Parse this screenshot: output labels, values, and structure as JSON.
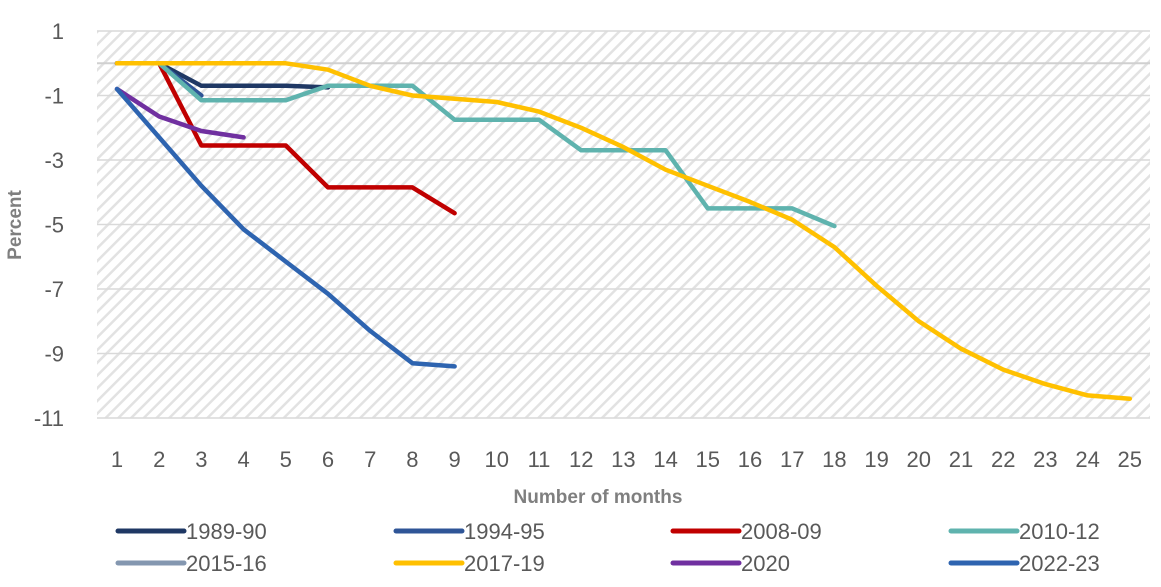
{
  "chart_data": {
    "type": "line",
    "title": "",
    "xlabel": "Number of months",
    "ylabel": "Percent",
    "x": [
      1,
      2,
      3,
      4,
      5,
      6,
      7,
      8,
      9,
      10,
      11,
      12,
      13,
      14,
      15,
      16,
      17,
      18,
      19,
      20,
      21,
      22,
      23,
      24,
      25
    ],
    "y_ticks": [
      1,
      -1,
      -3,
      -5,
      -7,
      -9,
      -11
    ],
    "ylim": [
      -11,
      1
    ],
    "grid": "hatched plot area with horizontal gridlines",
    "legend_position": "bottom",
    "series": [
      {
        "name": "1989-90",
        "color": "#1f3864",
        "x": [
          1,
          2,
          3,
          4,
          5,
          6
        ],
        "values": [
          0,
          0,
          -0.7,
          -0.7,
          -0.7,
          -0.75
        ]
      },
      {
        "name": "1994-95",
        "color": "#2f5597",
        "x": [
          1,
          2,
          3
        ],
        "values": [
          0,
          0,
          -1.0
        ]
      },
      {
        "name": "2008-09",
        "color": "#c00000",
        "x": [
          1,
          2,
          3,
          4,
          5,
          6,
          7,
          8,
          9
        ],
        "values": [
          0,
          0,
          -2.55,
          -2.55,
          -2.55,
          -3.85,
          -3.85,
          -3.85,
          -4.65
        ]
      },
      {
        "name": "2010-12",
        "color": "#5fb3ae",
        "x": [
          1,
          2,
          3,
          4,
          5,
          6,
          7,
          8,
          9,
          10,
          11,
          12,
          13,
          14,
          15,
          16,
          17,
          18
        ],
        "values": [
          0,
          0,
          -1.15,
          -1.15,
          -1.15,
          -0.7,
          -0.7,
          -0.7,
          -1.75,
          -1.75,
          -1.75,
          -2.7,
          -2.7,
          -2.7,
          -4.5,
          -4.5,
          -4.5,
          -5.05
        ]
      },
      {
        "name": "2015-16",
        "color": "#8497b0",
        "x": [
          1,
          2
        ],
        "values": [
          0,
          0
        ]
      },
      {
        "name": "2017-19",
        "color": "#ffc000",
        "x": [
          1,
          2,
          3,
          4,
          5,
          6,
          7,
          8,
          9,
          10,
          11,
          12,
          13,
          14,
          15,
          16,
          17,
          18,
          19,
          20,
          21,
          22,
          23,
          24,
          25
        ],
        "values": [
          0,
          0,
          0,
          0,
          0,
          -0.2,
          -0.7,
          -1.0,
          -1.1,
          -1.2,
          -1.5,
          -2.0,
          -2.6,
          -3.3,
          -3.8,
          -4.3,
          -4.85,
          -5.7,
          -6.9,
          -8.0,
          -8.85,
          -9.5,
          -9.95,
          -10.3,
          -10.4
        ]
      },
      {
        "name": "2020",
        "color": "#7030a0",
        "x": [
          1,
          2,
          3,
          4
        ],
        "values": [
          -0.8,
          -1.65,
          -2.1,
          -2.3
        ]
      },
      {
        "name": "2022-23",
        "color": "#2e64b0",
        "x": [
          1,
          2,
          3,
          4,
          5,
          6,
          7,
          8,
          9
        ],
        "values": [
          -0.8,
          -2.3,
          -3.8,
          -5.15,
          -6.15,
          -7.15,
          -8.3,
          -9.3,
          -9.4
        ]
      }
    ]
  }
}
